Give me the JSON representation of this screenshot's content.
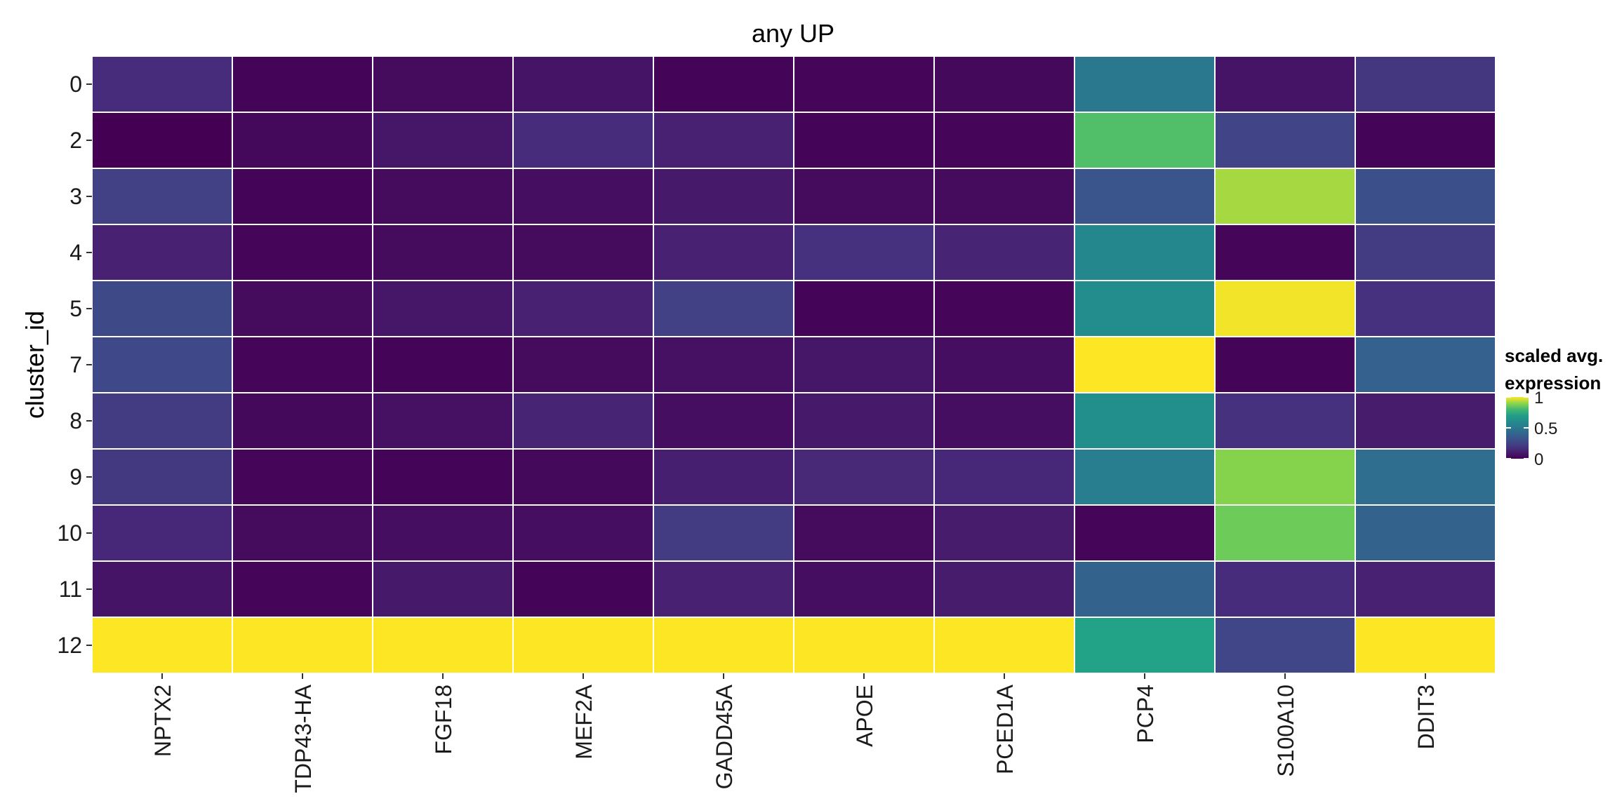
{
  "chart_data": {
    "type": "heatmap",
    "title": "any UP",
    "xlabel": "",
    "ylabel": "cluster_id",
    "x_categories": [
      "NPTX2",
      "TDP43-HA",
      "FGF18",
      "MEF2A",
      "GADD45A",
      "APOE",
      "PCED1A",
      "PCP4",
      "S100A10",
      "DDIT3"
    ],
    "y_categories": [
      "0",
      "2",
      "3",
      "4",
      "5",
      "7",
      "8",
      "9",
      "10",
      "11",
      "12"
    ],
    "values": [
      [
        0.16,
        0.01,
        0.04,
        0.07,
        0.01,
        0.02,
        0.03,
        0.5,
        0.07,
        0.2
      ],
      [
        0.0,
        0.03,
        0.08,
        0.16,
        0.12,
        0.01,
        0.02,
        0.82,
        0.25,
        0.01
      ],
      [
        0.24,
        0.01,
        0.04,
        0.05,
        0.09,
        0.04,
        0.04,
        0.33,
        0.92,
        0.31
      ],
      [
        0.12,
        0.02,
        0.04,
        0.04,
        0.12,
        0.18,
        0.13,
        0.58,
        0.02,
        0.22
      ],
      [
        0.28,
        0.04,
        0.08,
        0.12,
        0.24,
        0.01,
        0.02,
        0.61,
        0.99,
        0.18
      ],
      [
        0.27,
        0.02,
        0.01,
        0.04,
        0.06,
        0.08,
        0.05,
        1.0,
        0.01,
        0.39
      ],
      [
        0.22,
        0.03,
        0.06,
        0.13,
        0.05,
        0.09,
        0.05,
        0.62,
        0.18,
        0.1
      ],
      [
        0.21,
        0.02,
        0.01,
        0.03,
        0.11,
        0.15,
        0.14,
        0.53,
        0.89,
        0.45
      ],
      [
        0.14,
        0.04,
        0.05,
        0.05,
        0.22,
        0.04,
        0.1,
        0.02,
        0.86,
        0.4
      ],
      [
        0.07,
        0.02,
        0.09,
        0.01,
        0.12,
        0.05,
        0.1,
        0.4,
        0.16,
        0.12
      ],
      [
        1.0,
        1.0,
        1.0,
        1.0,
        1.0,
        1.0,
        1.0,
        0.72,
        0.26,
        1.0
      ]
    ],
    "zlim": [
      0,
      1
    ],
    "colormap": "viridis",
    "legend": {
      "title_line1": "scaled avg.",
      "title_line2": "expression",
      "ticks": [
        {
          "value": 1,
          "label": "1"
        },
        {
          "value": 0.5,
          "label": "0.5"
        },
        {
          "value": 0,
          "label": "0"
        }
      ],
      "placement": "right"
    },
    "grid": false,
    "cell_border_color": "#ffffff"
  }
}
